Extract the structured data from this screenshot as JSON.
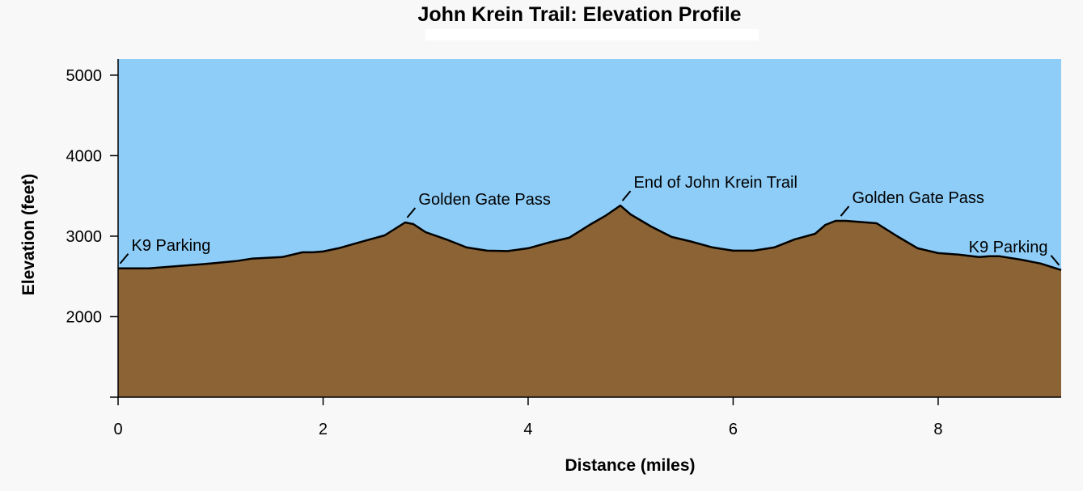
{
  "chart_data": {
    "type": "area",
    "title": "John Krein Trail: Elevation Profile",
    "xlabel": "Distance (miles)",
    "ylabel": "Elevation (feet)",
    "xlim": [
      0,
      9.2
    ],
    "ylim": [
      1000,
      5200
    ],
    "x_ticks": [
      0,
      2,
      4,
      6,
      8
    ],
    "y_ticks": [
      2000,
      3000,
      4000,
      5000
    ],
    "colors": {
      "sky": "#8ecdf8",
      "terrain": "#8b6334",
      "outline": "#000000"
    },
    "grid": false,
    "series": [
      {
        "points": [
          [
            0,
            2600
          ],
          [
            0.3,
            2600
          ],
          [
            0.6,
            2630
          ],
          [
            0.9,
            2660
          ],
          [
            1.15,
            2690
          ],
          [
            1.3,
            2720
          ],
          [
            1.6,
            2740
          ],
          [
            1.8,
            2800
          ],
          [
            1.9,
            2800
          ],
          [
            2.0,
            2810
          ],
          [
            2.15,
            2850
          ],
          [
            2.4,
            2940
          ],
          [
            2.6,
            3010
          ],
          [
            2.7,
            3090
          ],
          [
            2.8,
            3170
          ],
          [
            2.88,
            3150
          ],
          [
            3.0,
            3050
          ],
          [
            3.2,
            2960
          ],
          [
            3.4,
            2860
          ],
          [
            3.6,
            2820
          ],
          [
            3.8,
            2815
          ],
          [
            4.0,
            2850
          ],
          [
            4.2,
            2920
          ],
          [
            4.4,
            2980
          ],
          [
            4.6,
            3140
          ],
          [
            4.75,
            3250
          ],
          [
            4.9,
            3380
          ],
          [
            5.0,
            3270
          ],
          [
            5.2,
            3120
          ],
          [
            5.4,
            2990
          ],
          [
            5.6,
            2930
          ],
          [
            5.8,
            2860
          ],
          [
            6.0,
            2820
          ],
          [
            6.2,
            2820
          ],
          [
            6.4,
            2860
          ],
          [
            6.6,
            2960
          ],
          [
            6.8,
            3030
          ],
          [
            6.9,
            3140
          ],
          [
            7.0,
            3190
          ],
          [
            7.1,
            3190
          ],
          [
            7.2,
            3180
          ],
          [
            7.4,
            3160
          ],
          [
            7.6,
            3000
          ],
          [
            7.8,
            2850
          ],
          [
            8.0,
            2790
          ],
          [
            8.2,
            2770
          ],
          [
            8.4,
            2740
          ],
          [
            8.5,
            2750
          ],
          [
            8.6,
            2750
          ],
          [
            8.8,
            2710
          ],
          [
            9.0,
            2660
          ],
          [
            9.2,
            2580
          ]
        ]
      }
    ],
    "annotations": [
      {
        "label": "K9 Parking",
        "x": 0.02,
        "y": 2620
      },
      {
        "label": "Golden Gate Pass",
        "x": 2.82,
        "y": 3190
      },
      {
        "label": "End of John Krein Trail",
        "x": 4.92,
        "y": 3400
      },
      {
        "label": "Golden Gate Pass",
        "x": 7.05,
        "y": 3210
      },
      {
        "label": "K9 Parking",
        "x": 9.18,
        "y": 2600
      }
    ]
  }
}
